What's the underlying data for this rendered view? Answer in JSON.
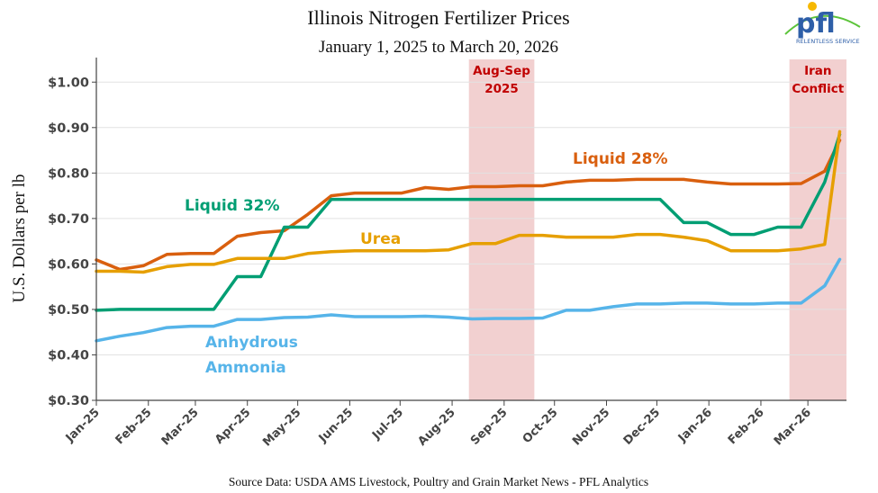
{
  "chart_data": {
    "type": "line",
    "title": "Illinois Nitrogen Fertilizer Prices",
    "subtitle": "January 1, 2025 to March 20, 2026",
    "xlabel": "",
    "ylabel": "U.S. Dollars per lb",
    "ylim": [
      0.3,
      1.05
    ],
    "yticks": [
      "$0.30",
      "$0.40",
      "$0.50",
      "$0.60",
      "$0.70",
      "$0.80",
      "$0.90",
      "$1.00"
    ],
    "ytick_values": [
      0.3,
      0.4,
      0.5,
      0.6,
      0.7,
      0.8,
      0.9,
      1.0
    ],
    "xticks": [
      "Jan-25",
      "Feb-25",
      "Mar-25",
      "Apr-25",
      "May-25",
      "Jun-25",
      "Jul-25",
      "Aug-25",
      "Sep-25",
      "Oct-25",
      "Nov-25",
      "Dec-25",
      "Jan-26",
      "Feb-26",
      "Mar-26"
    ],
    "xtick_dates": [
      "2025-01-01",
      "2025-02-01",
      "2025-03-01",
      "2025-04-01",
      "2025-05-01",
      "2025-06-01",
      "2025-07-01",
      "2025-08-01",
      "2025-09-01",
      "2025-10-01",
      "2025-11-01",
      "2025-12-01",
      "2026-01-01",
      "2026-02-01",
      "2026-03-01"
    ],
    "xlim": [
      "2025-01-01",
      "2026-03-24"
    ],
    "grid": true,
    "x": [
      "2025-01-01",
      "2025-01-15",
      "2025-01-29",
      "2025-02-12",
      "2025-02-26",
      "2025-03-12",
      "2025-03-26",
      "2025-04-09",
      "2025-04-23",
      "2025-05-07",
      "2025-05-21",
      "2025-06-04",
      "2025-06-18",
      "2025-07-02",
      "2025-07-16",
      "2025-07-30",
      "2025-08-13",
      "2025-08-27",
      "2025-09-10",
      "2025-09-24",
      "2025-10-08",
      "2025-10-22",
      "2025-11-05",
      "2025-11-19",
      "2025-12-03",
      "2025-12-17",
      "2025-12-31",
      "2026-01-14",
      "2026-01-28",
      "2026-02-11",
      "2026-02-25",
      "2026-03-11",
      "2026-03-20"
    ],
    "series": [
      {
        "name": "Liquid 28%",
        "color": "#d95f0e",
        "values": [
          0.609,
          0.588,
          0.596,
          0.621,
          0.623,
          0.623,
          0.661,
          0.669,
          0.673,
          0.709,
          0.75,
          0.756,
          0.756,
          0.756,
          0.768,
          0.764,
          0.77,
          0.77,
          0.772,
          0.772,
          0.78,
          0.784,
          0.784,
          0.786,
          0.786,
          0.786,
          0.78,
          0.776,
          0.776,
          0.776,
          0.777,
          0.804,
          0.872
        ]
      },
      {
        "name": "Liquid 32%",
        "color": "#009e73",
        "values": [
          0.498,
          0.5,
          0.5,
          0.5,
          0.5,
          0.5,
          0.572,
          0.572,
          0.681,
          0.681,
          0.742,
          0.742,
          0.742,
          0.742,
          0.742,
          0.742,
          0.742,
          0.742,
          0.742,
          0.742,
          0.742,
          0.742,
          0.742,
          0.742,
          0.742,
          0.691,
          0.691,
          0.665,
          0.665,
          0.681,
          0.681,
          0.78,
          0.885
        ]
      },
      {
        "name": "Urea",
        "color": "#e69f00",
        "values": [
          0.584,
          0.584,
          0.582,
          0.594,
          0.599,
          0.599,
          0.612,
          0.612,
          0.612,
          0.623,
          0.627,
          0.629,
          0.629,
          0.629,
          0.629,
          0.631,
          0.645,
          0.645,
          0.663,
          0.663,
          0.659,
          0.659,
          0.659,
          0.665,
          0.665,
          0.659,
          0.651,
          0.629,
          0.629,
          0.629,
          0.633,
          0.643,
          0.891
        ]
      },
      {
        "name": "Anhydrous Ammonia",
        "name_lines": [
          "Anhydrous",
          "Ammonia"
        ],
        "color": "#56b4e9",
        "values": [
          0.431,
          0.441,
          0.449,
          0.46,
          0.463,
          0.463,
          0.478,
          0.478,
          0.482,
          0.483,
          0.488,
          0.484,
          0.484,
          0.484,
          0.485,
          0.483,
          0.479,
          0.48,
          0.48,
          0.481,
          0.498,
          0.498,
          0.506,
          0.512,
          0.512,
          0.514,
          0.514,
          0.512,
          0.512,
          0.514,
          0.514,
          0.552,
          0.61
        ]
      }
    ],
    "shaded_periods": [
      {
        "label_lines": [
          "Aug-Sep",
          "2025"
        ],
        "start": "2025-08-11",
        "end": "2025-09-19",
        "color": "#f2d0d0"
      },
      {
        "label_lines": [
          "Iran",
          "Conflict"
        ],
        "start": "2026-02-18",
        "end": "2026-03-24",
        "color": "#f2d0d0"
      }
    ],
    "annotation_color": "#c00000",
    "source": "Source Data: USDA AMS Livestock, Poultry and Grain Market News - PFL Analytics"
  },
  "logo": {
    "text": "pfl",
    "tagline": "RELENTLESS SERVICE",
    "color": "#2e5fa8"
  }
}
